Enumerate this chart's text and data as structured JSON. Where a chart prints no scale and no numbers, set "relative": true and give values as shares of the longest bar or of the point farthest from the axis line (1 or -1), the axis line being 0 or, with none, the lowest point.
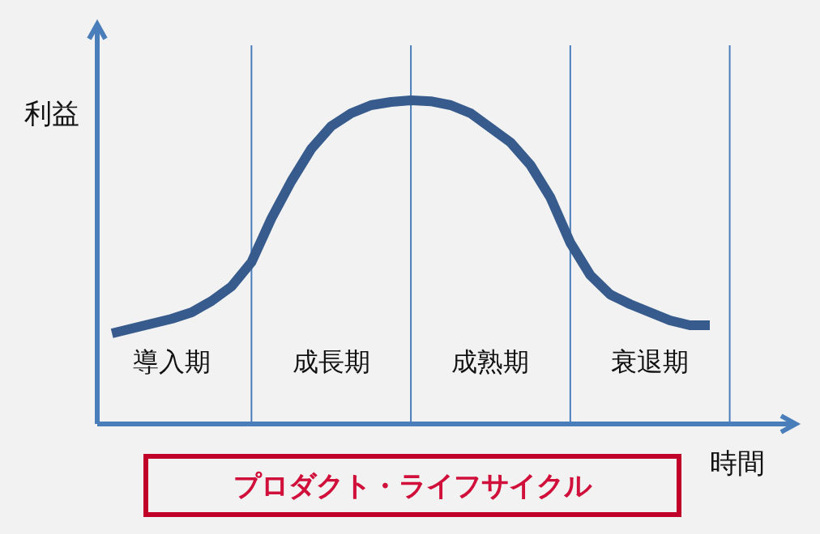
{
  "chart_data": {
    "type": "line",
    "title": "プロダクト・ライフサイクル",
    "xlabel": "時間",
    "ylabel": "利益",
    "relative": true,
    "grid": "x",
    "categories": [
      null,
      null,
      null,
      "導入期",
      null,
      null,
      null,
      null,
      null,
      null,
      null,
      "成長期",
      null,
      null,
      null,
      null,
      null,
      null,
      null,
      "成熟期",
      null,
      null,
      null,
      null,
      null,
      null,
      null,
      "衰退期",
      null,
      null,
      null
    ],
    "series": [
      {
        "color": "#365b8c",
        "values": [
          0.28,
          0.295,
          0.31,
          0.325,
          0.345,
          0.38,
          0.425,
          0.5,
          0.635,
          0.75,
          0.85,
          0.92,
          0.96,
          0.985,
          0.995,
          1.0,
          0.997,
          0.985,
          0.96,
          0.915,
          0.87,
          0.8,
          0.7,
          0.56,
          0.46,
          0.4,
          0.37,
          0.345,
          0.32,
          0.305,
          0.305
        ]
      }
    ]
  }
}
